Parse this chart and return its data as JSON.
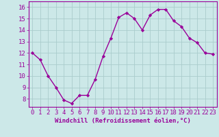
{
  "x": [
    0,
    1,
    2,
    3,
    4,
    5,
    6,
    7,
    8,
    9,
    10,
    11,
    12,
    13,
    14,
    15,
    16,
    17,
    18,
    19,
    20,
    21,
    22,
    23
  ],
  "y": [
    12.0,
    11.4,
    10.0,
    9.0,
    7.9,
    7.6,
    8.3,
    8.3,
    9.7,
    11.7,
    13.3,
    15.1,
    15.5,
    15.0,
    14.0,
    15.3,
    15.8,
    15.8,
    14.8,
    14.3,
    13.3,
    12.9,
    12.0,
    11.9
  ],
  "line_color": "#990099",
  "marker": "D",
  "marker_size": 2.2,
  "bg_color": "#cce8e8",
  "grid_color": "#aacccc",
  "xlabel": "Windchill (Refroidissement éolien,°C)",
  "xlabel_fontsize": 6.5,
  "xtick_labels": [
    "0",
    "1",
    "2",
    "3",
    "4",
    "5",
    "6",
    "7",
    "8",
    "9",
    "10",
    "11",
    "12",
    "13",
    "14",
    "15",
    "16",
    "17",
    "18",
    "19",
    "20",
    "21",
    "22",
    "23"
  ],
  "ytick_labels": [
    "8",
    "9",
    "10",
    "11",
    "12",
    "13",
    "14",
    "15",
    "16"
  ],
  "ytick_vals": [
    8,
    9,
    10,
    11,
    12,
    13,
    14,
    15,
    16
  ],
  "ylim": [
    7.3,
    16.5
  ],
  "xlim": [
    -0.5,
    23.5
  ],
  "tick_fontsize": 6.5,
  "linewidth": 1.0
}
